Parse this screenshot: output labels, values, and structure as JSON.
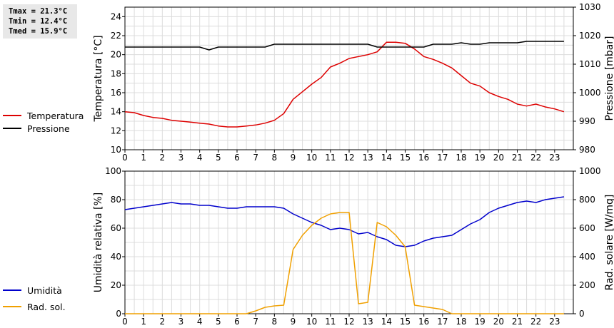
{
  "stats": {
    "tmax": "Tmax = 21.3°C",
    "tmin": "Tmin = 12.4°C",
    "tmed": "Tmed = 15.9°C"
  },
  "legend_top": [
    {
      "label": "Temperatura",
      "color": "#dd0000"
    },
    {
      "label": "Pressione",
      "color": "#000000"
    }
  ],
  "legend_bottom": [
    {
      "label": "Umidità",
      "color": "#0000cc"
    },
    {
      "label": "Rad. sol.",
      "color": "#f0a000"
    }
  ],
  "chart_data": [
    {
      "type": "line",
      "x": [
        0,
        0.5,
        1,
        1.5,
        2,
        2.5,
        3,
        3.5,
        4,
        4.5,
        5,
        5.5,
        6,
        6.5,
        7,
        7.5,
        8,
        8.5,
        9,
        9.5,
        10,
        10.5,
        11,
        11.5,
        12,
        12.5,
        13,
        13.5,
        14,
        14.5,
        15,
        15.5,
        16,
        16.5,
        17,
        17.5,
        18,
        18.5,
        19,
        19.5,
        20,
        20.5,
        21,
        21.5,
        22,
        22.5,
        23,
        23.5
      ],
      "xlim": [
        0,
        24
      ],
      "xticks": [
        "0",
        "1",
        "2",
        "3",
        "4",
        "5",
        "6",
        "7",
        "8",
        "9",
        "10",
        "11",
        "12",
        "13",
        "14",
        "15",
        "16",
        "17",
        "18",
        "19",
        "20",
        "21",
        "22",
        "23"
      ],
      "ylabel": "Temperatura [°C]",
      "ylim": [
        10,
        25
      ],
      "yticks": [
        "10",
        "12",
        "14",
        "16",
        "18",
        "20",
        "22",
        "24"
      ],
      "y2label": "Pressione [mbar]",
      "y2lim": [
        980,
        1030
      ],
      "y2ticks": [
        "980",
        "990",
        "1000",
        "1010",
        "1020",
        "1030"
      ],
      "grid": true,
      "legend": "left",
      "series": [
        {
          "name": "Temperatura",
          "axis": "left",
          "color": "#dd0000",
          "values": [
            14.0,
            13.9,
            13.6,
            13.4,
            13.3,
            13.1,
            13.0,
            12.9,
            12.8,
            12.7,
            12.5,
            12.4,
            12.4,
            12.5,
            12.6,
            12.8,
            13.1,
            13.8,
            15.3,
            16.1,
            16.9,
            17.6,
            18.7,
            19.1,
            19.6,
            19.8,
            20.0,
            20.3,
            21.3,
            21.3,
            21.2,
            20.6,
            19.8,
            19.5,
            19.1,
            18.6,
            17.8,
            17.0,
            16.7,
            16.0,
            15.6,
            15.3,
            14.8,
            14.6,
            14.8,
            14.5,
            14.3,
            14.0
          ]
        },
        {
          "name": "Pressione",
          "axis": "right",
          "color": "#000000",
          "values": [
            1016,
            1016,
            1016,
            1016,
            1016,
            1016,
            1016,
            1016,
            1016,
            1015,
            1016,
            1016,
            1016,
            1016,
            1016,
            1016,
            1017,
            1017,
            1017,
            1017,
            1017,
            1017,
            1017,
            1017,
            1017,
            1017,
            1017,
            1016,
            1016,
            1016,
            1016,
            1016,
            1016,
            1017,
            1017,
            1017,
            1017.5,
            1017,
            1017,
            1017.5,
            1017.5,
            1017.5,
            1017.5,
            1018,
            1018,
            1018,
            1018,
            1018
          ]
        }
      ]
    },
    {
      "type": "line",
      "x": [
        0,
        0.5,
        1,
        1.5,
        2,
        2.5,
        3,
        3.5,
        4,
        4.5,
        5,
        5.5,
        6,
        6.5,
        7,
        7.5,
        8,
        8.5,
        9,
        9.5,
        10,
        10.5,
        11,
        11.5,
        12,
        12.5,
        13,
        13.5,
        14,
        14.5,
        15,
        15.5,
        16,
        16.5,
        17,
        17.5,
        18,
        18.5,
        19,
        19.5,
        20,
        20.5,
        21,
        21.5,
        22,
        22.5,
        23,
        23.5
      ],
      "xlim": [
        0,
        24
      ],
      "xticks": [
        "0",
        "1",
        "2",
        "3",
        "4",
        "5",
        "6",
        "7",
        "8",
        "9",
        "10",
        "11",
        "12",
        "13",
        "14",
        "15",
        "16",
        "17",
        "18",
        "19",
        "20",
        "21",
        "22",
        "23"
      ],
      "ylabel": "Umidità relativa [%]",
      "ylim": [
        0,
        100
      ],
      "yticks": [
        "0",
        "20",
        "40",
        "60",
        "80",
        "100"
      ],
      "y2label": "Rad. solare [W/mq]",
      "y2lim": [
        0,
        1000
      ],
      "y2ticks": [
        "0",
        "200",
        "400",
        "600",
        "800",
        "1000"
      ],
      "grid": true,
      "legend": "left",
      "series": [
        {
          "name": "Umidità",
          "axis": "left",
          "color": "#0000cc",
          "values": [
            73,
            74,
            75,
            76,
            77,
            78,
            77,
            77,
            76,
            76,
            75,
            74,
            74,
            75,
            75,
            75,
            75,
            74,
            70,
            67,
            64,
            62,
            59,
            60,
            59,
            56,
            57,
            54,
            52,
            48,
            47,
            48,
            51,
            53,
            54,
            55,
            59,
            63,
            66,
            71,
            74,
            76,
            78,
            79,
            78,
            80,
            81,
            82
          ]
        },
        {
          "name": "Rad. sol.",
          "axis": "right",
          "color": "#f0a000",
          "values": [
            0,
            0,
            0,
            0,
            0,
            0,
            0,
            0,
            0,
            0,
            0,
            0,
            0,
            0,
            20,
            45,
            55,
            60,
            450,
            550,
            620,
            670,
            700,
            710,
            710,
            70,
            80,
            640,
            610,
            550,
            470,
            60,
            50,
            40,
            30,
            0,
            0,
            0,
            0,
            0,
            0,
            0,
            0,
            0,
            0,
            0,
            0,
            0
          ]
        }
      ]
    }
  ]
}
